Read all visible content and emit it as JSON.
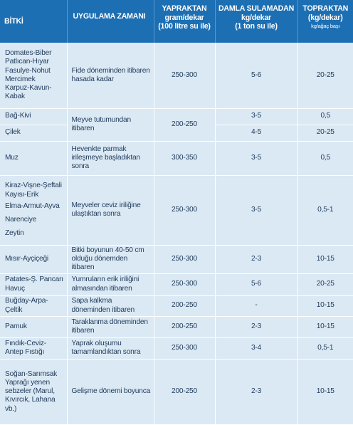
{
  "headers": {
    "plant": "BİTKİ",
    "timing": "UYGULAMA ZAMANI",
    "leaf_title": "YAPRAKTAN",
    "leaf_unit": "gram/dekar",
    "leaf_note": "(100 litre su ile)",
    "drip_title": "DAMLA SULAMADAN",
    "drip_unit": "kg/dekar",
    "drip_note": "(1 ton su ile)",
    "soil_title": "TOPRAKTAN",
    "soil_unit": "(kg/dekar)",
    "soil_note": "kg/ağaç başı"
  },
  "rows": {
    "r1": {
      "plants": [
        "Domates-Biber",
        "Patlıcan-Hıyar",
        "Fasulye-Nohut",
        "Mercimek",
        "Karpuz-Kavun-",
        "Kabak"
      ],
      "timing": "Fide döneminden itibaren hasada kadar",
      "leaf": "250-300",
      "drip": "5-6",
      "soil": "20-25"
    },
    "r2": {
      "plant_a": "Bağ-Kivi",
      "plant_b": "Çilek",
      "timing": "Meyve tutumundan itibaren",
      "leaf": "200-250",
      "drip_a": "3-5",
      "drip_b": "4-5",
      "soil_a": "0,5",
      "soil_b": "20-25"
    },
    "r3": {
      "plant": "Muz",
      "timing": "Hevenkte parmak irileşmeye başladıktan sonra",
      "leaf": "300-350",
      "drip": "3-5",
      "soil": "0,5"
    },
    "r4": {
      "plants": [
        "Kiraz-Vişne-Şeftali",
        "Kayısı-Erik",
        "Elma-Armut-Ayva",
        "Narenciye",
        "Zeytin"
      ],
      "timing": "Meyveler ceviz iriliğine ulaştıktan sonra",
      "leaf": "250-300",
      "drip": "3-5",
      "soil": "0,5-1"
    },
    "r5": {
      "plant": "Mısır-Ayçiçeği",
      "timing": "Bitki boyunun 40-50 cm olduğu dönemden itibaren",
      "leaf": "250-300",
      "drip": "2-3",
      "soil": "10-15"
    },
    "r6": {
      "plant": "Patates-Ş. Pancarı Havuç",
      "timing": "Yumruların erik iriliğini almasından itibaren",
      "leaf": "250-300",
      "drip": "5-6",
      "soil": "20-25"
    },
    "r7": {
      "plant": "Buğday-Arpa-Çeltik",
      "timing": "Sapa kalkma döneminden itibaren",
      "leaf": "200-250",
      "drip": "-",
      "soil": "10-15"
    },
    "r8": {
      "plant": "Pamuk",
      "timing": "Taraklanma döneminden itibaren",
      "leaf": "200-250",
      "drip": "2-3",
      "soil": "10-15"
    },
    "r9": {
      "plant": "Fındık-Ceviz-Antep Fıstığı",
      "timing": "Yaprak oluşumu tamamlandıktan sonra",
      "leaf": "250-300",
      "drip": "3-4",
      "soil": "0,5-1"
    },
    "r10": {
      "plant": "Soğan-Sarımsak Yaprağı yenen sebzeler (Marul, Kıvırcık, Lahana vb.)",
      "timing": "Gelişme dönemi boyunca",
      "leaf": "200-250",
      "drip": "2-3",
      "soil": "10-15"
    }
  },
  "colors": {
    "header_bg": "#1d6fb3",
    "body_bg": "#dbe9f4",
    "text": "#1f3a5a"
  }
}
